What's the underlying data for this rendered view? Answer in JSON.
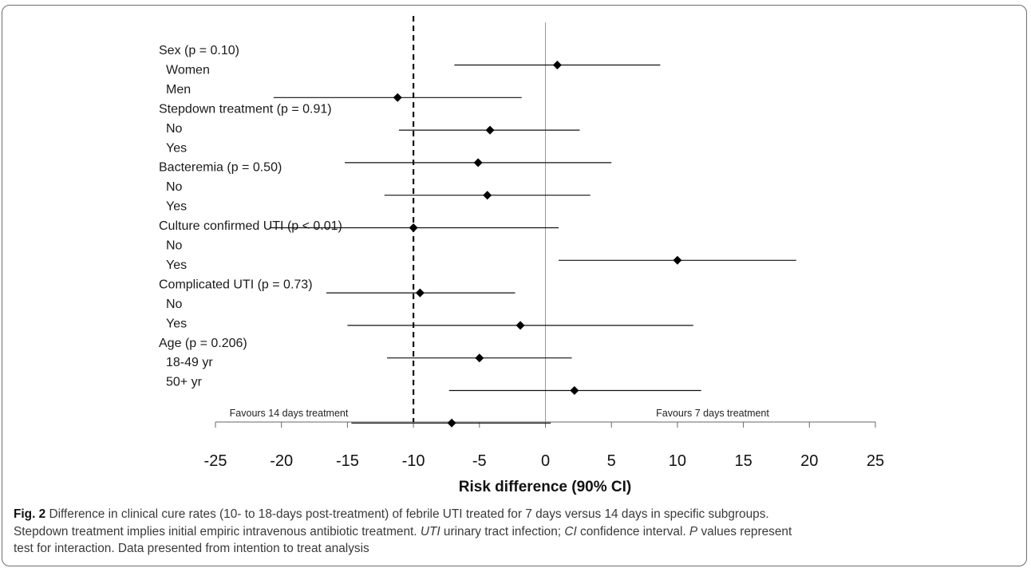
{
  "chart_data": {
    "type": "forest",
    "xlabel": "Risk difference (90% CI)",
    "xlim": [
      -25,
      25
    ],
    "xticks": [
      -25,
      -20,
      -15,
      -10,
      -5,
      0,
      5,
      10,
      15,
      20,
      25
    ],
    "reference_line": 0,
    "margin_line": -10,
    "favours_left": "Favours 14 days treatment",
    "favours_right": "Favours 7 days treatment",
    "labels": [
      {
        "text": "Sex (p = 0.10)",
        "indent": false
      },
      {
        "text": "Women",
        "indent": true
      },
      {
        "text": "Men",
        "indent": true
      },
      {
        "text": "Stepdown treatment (p = 0.91)",
        "indent": false
      },
      {
        "text": "No",
        "indent": true
      },
      {
        "text": "Yes",
        "indent": true
      },
      {
        "text": "Bacteremia (p = 0.50)",
        "indent": false
      },
      {
        "text": "No",
        "indent": true
      },
      {
        "text": "Yes",
        "indent": true
      },
      {
        "text": "Culture confirmed UTI (p < 0.01)",
        "indent": false
      },
      {
        "text": "No",
        "indent": true
      },
      {
        "text": "Yes",
        "indent": true
      },
      {
        "text": "Complicated UTI (p = 0.73)",
        "indent": false
      },
      {
        "text": "No",
        "indent": true
      },
      {
        "text": "Yes",
        "indent": true
      },
      {
        "text": "Age (p = 0.206)",
        "indent": false
      },
      {
        "text": "18-49 yr",
        "indent": true
      },
      {
        "text": "50+ yr",
        "indent": true
      }
    ],
    "points": [
      {
        "estimate": 0.9,
        "lower": -6.9,
        "upper": 8.7
      },
      {
        "estimate": -11.2,
        "lower": -20.6,
        "upper": -1.8
      },
      {
        "estimate": -4.2,
        "lower": -11.1,
        "upper": 2.6
      },
      {
        "estimate": -5.1,
        "lower": -15.2,
        "upper": 5.0
      },
      {
        "estimate": -4.4,
        "lower": -12.2,
        "upper": 3.4
      },
      {
        "estimate": -10.0,
        "lower": -20.9,
        "upper": 1.0
      },
      {
        "estimate": 10.0,
        "lower": 1.0,
        "upper": 19.0
      },
      {
        "estimate": -9.5,
        "lower": -16.6,
        "upper": -2.3
      },
      {
        "estimate": -1.9,
        "lower": -15.0,
        "upper": 11.2
      },
      {
        "estimate": -5.0,
        "lower": -12.0,
        "upper": 2.0
      },
      {
        "estimate": 2.2,
        "lower": -7.3,
        "upper": 11.8
      },
      {
        "estimate": -7.1,
        "lower": -14.7,
        "upper": 0.4
      }
    ]
  },
  "caption": {
    "lead": "Fig. 2",
    "line1": "Difference in clinical cure rates (10- to 18-days post-treatment) of febrile UTI treated for 7 days versus 14 days in specific subgroups.",
    "line2": "Stepdown treatment implies initial empiric intravenous antibiotic treatment.",
    "abbr1": "UTI",
    "abbr1_def": "urinary tract infection;",
    "abbr2": "CI",
    "abbr2_def": "confidence interval.",
    "abbr3": "P",
    "abbr3_def": "values represent",
    "line4": "test for interaction. Data presented from intention to treat analysis"
  }
}
